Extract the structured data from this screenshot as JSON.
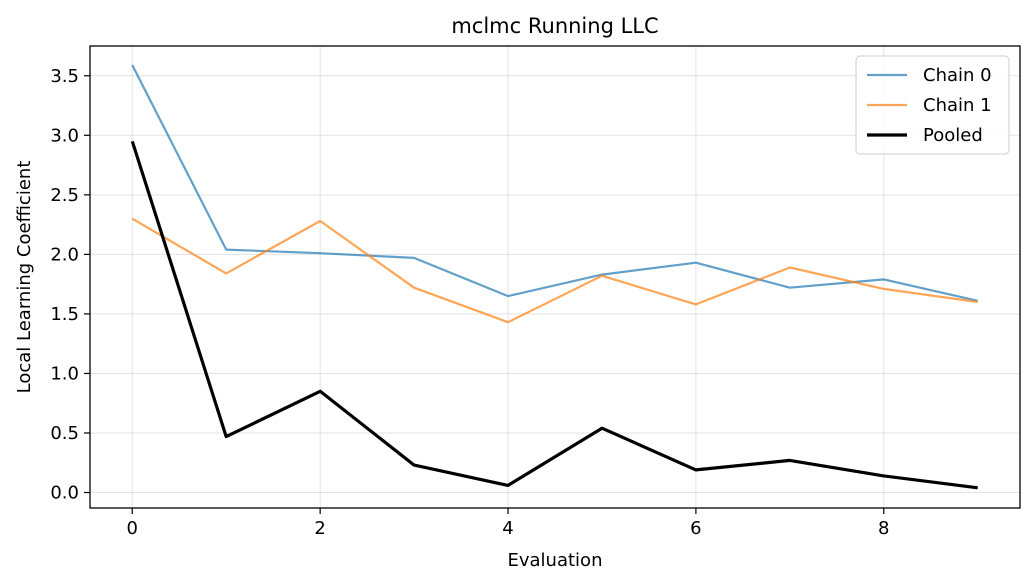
{
  "chart_data": {
    "type": "line",
    "title": "mclmc Running LLC",
    "xlabel": "Evaluation",
    "ylabel": "Local Learning Coefficient",
    "x": [
      0,
      1,
      2,
      3,
      4,
      5,
      6,
      7,
      8,
      9
    ],
    "xlim": [
      -0.45,
      9.45
    ],
    "ylim": [
      -0.13,
      3.75
    ],
    "xticks": [
      0,
      2,
      4,
      6,
      8
    ],
    "xtick_labels": [
      "0",
      "2",
      "4",
      "6",
      "8"
    ],
    "yticks": [
      0.0,
      0.5,
      1.0,
      1.5,
      2.0,
      2.5,
      3.0,
      3.5
    ],
    "ytick_labels": [
      "0.0",
      "0.5",
      "1.0",
      "1.5",
      "2.0",
      "2.5",
      "3.0",
      "3.5"
    ],
    "grid": true,
    "legend_position": "top-right",
    "series": [
      {
        "name": "Chain 0",
        "color": "#1f77b4",
        "opacity": 0.7,
        "width": 2.2,
        "values": [
          3.59,
          2.04,
          2.01,
          1.97,
          1.65,
          1.83,
          1.93,
          1.72,
          1.79,
          1.61
        ]
      },
      {
        "name": "Chain 1",
        "color": "#ff7f0e",
        "opacity": 0.7,
        "width": 2.2,
        "values": [
          2.3,
          1.84,
          2.28,
          1.72,
          1.43,
          1.82,
          1.58,
          1.89,
          1.71,
          1.6
        ]
      },
      {
        "name": "Pooled",
        "color": "#000000",
        "opacity": 1.0,
        "width": 3.2,
        "values": [
          2.95,
          0.47,
          0.85,
          0.23,
          0.06,
          0.54,
          0.19,
          0.27,
          0.14,
          0.04
        ]
      }
    ]
  }
}
